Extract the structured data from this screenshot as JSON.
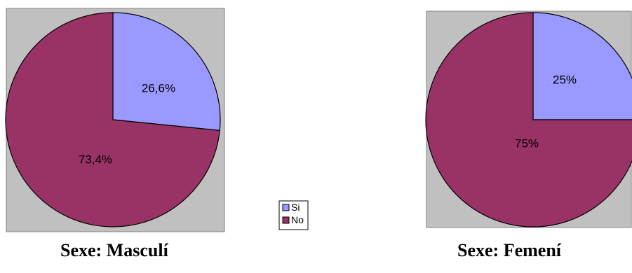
{
  "chart_data": [
    {
      "type": "pie",
      "title": "Sexe: Masculí",
      "categories": [
        "Si",
        "No"
      ],
      "values": [
        26.6,
        73.4
      ],
      "labels": [
        "26,6%",
        "73,4%"
      ]
    },
    {
      "type": "pie",
      "title": "Sexe: Femení",
      "categories": [
        "Si",
        "No"
      ],
      "values": [
        25,
        75
      ],
      "labels": [
        "25%",
        "75%"
      ]
    }
  ],
  "legend": {
    "items": [
      {
        "label": "Si",
        "color": "#9999ff"
      },
      {
        "label": "No",
        "color": "#993366"
      }
    ]
  },
  "colors": {
    "plot_background": "#c0c0c0",
    "plot_border": "#808080"
  }
}
